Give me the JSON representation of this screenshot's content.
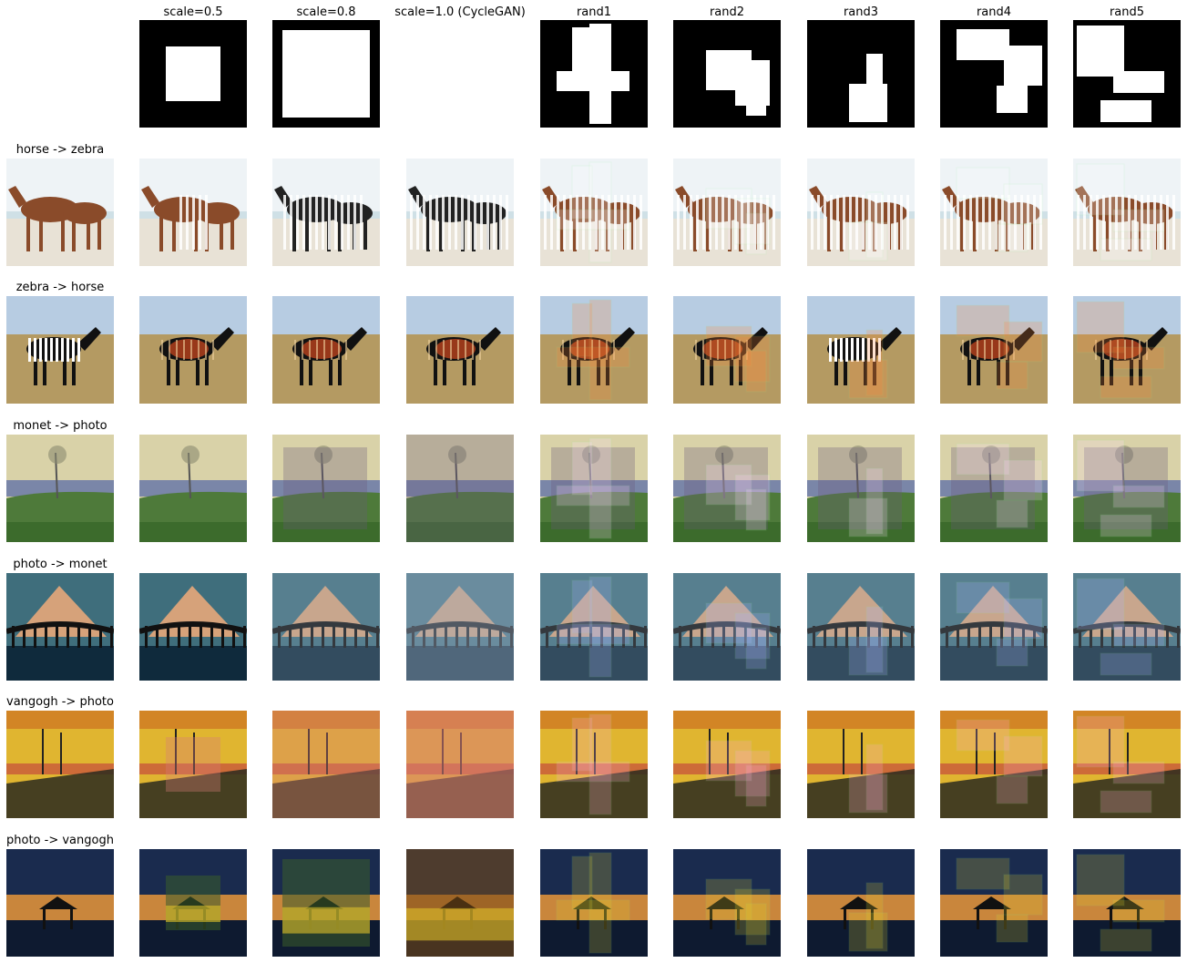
{
  "columns": [
    "",
    "scale=0.5",
    "scale=0.8",
    "scale=1.0 (CycleGAN)",
    "rand1",
    "rand2",
    "rand3",
    "rand4",
    "rand5"
  ],
  "rows": [
    "horse -> zebra",
    "zebra -> horse",
    "monet -> photo",
    "photo -> monet",
    "vangogh -> photo",
    "photo -> vangogh"
  ],
  "palette": {
    "mask_black": "#000000",
    "mask_white": "#ffffff",
    "horse_sky": "#eef3f6",
    "horse_sand": "#e8e2d6",
    "horse_brown": "#8a4b2a",
    "zebra_sky": "#b7cce2",
    "zebra_grass": "#b49a62",
    "monet_sky": "#d9d2a8",
    "monet_green": "#4e7a3a",
    "bridge_sky": "#3f6e7c",
    "bridge_peak": "#d6a27a",
    "vangogh_yellow": "#e0b530",
    "vangogh_dark": "#2a2a1e",
    "night_blue": "#1a2b4e",
    "sunset_orange": "#e9973a"
  }
}
